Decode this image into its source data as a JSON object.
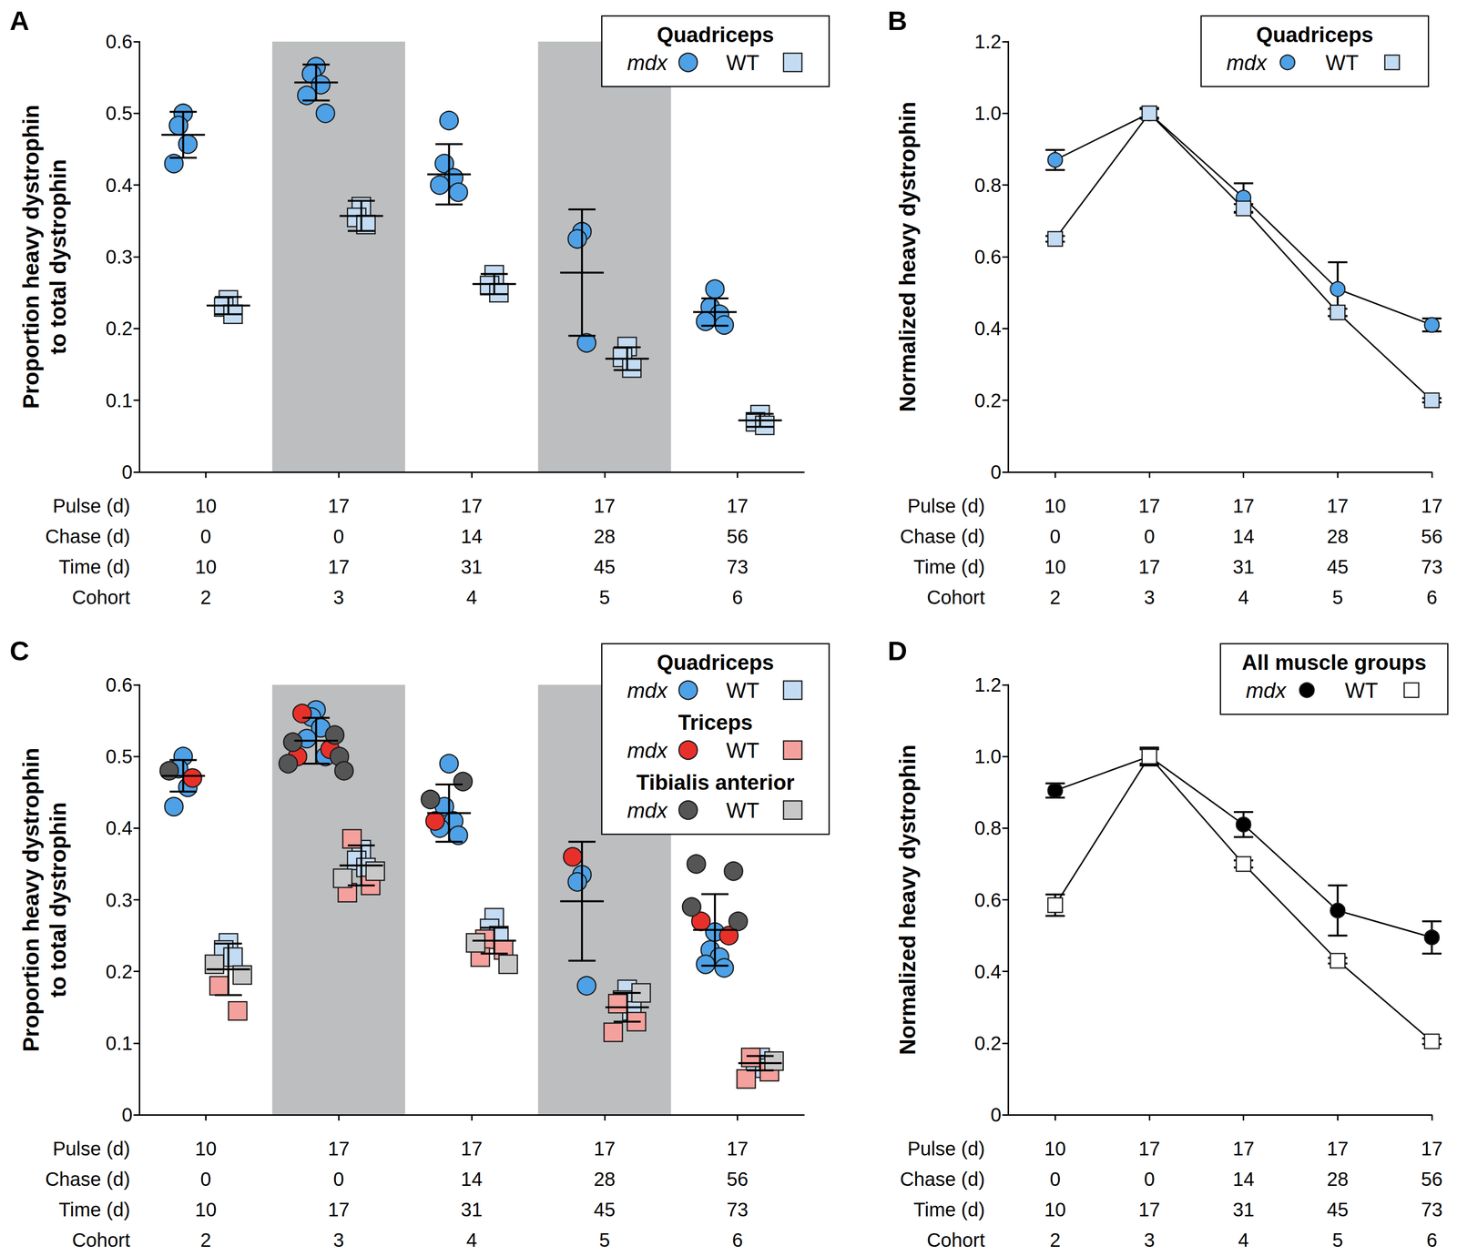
{
  "chart_data": [
    {
      "panel": "A",
      "type": "scatter",
      "ylabel": "Proportion heavy dystrophin\nto total dystrophin",
      "ylim": [
        0,
        0.6
      ],
      "yticks": [
        0,
        0.1,
        0.2,
        0.3,
        0.4,
        0.5,
        0.6
      ],
      "legend": "upper right",
      "category_rows": [
        {
          "label": "Pulse (d)",
          "values": [
            10,
            17,
            17,
            17,
            17
          ]
        },
        {
          "label": "Chase (d)",
          "values": [
            0,
            0,
            14,
            28,
            56
          ]
        },
        {
          "label": "Time (d)",
          "values": [
            10,
            17,
            31,
            45,
            73
          ]
        },
        {
          "label": "Cohort",
          "values": [
            2,
            3,
            4,
            5,
            6
          ]
        }
      ],
      "series": [
        {
          "name": "mdx",
          "group": "Quadriceps",
          "color": "#4ea1e6",
          "marker": "circle",
          "values": [
            [
              0.5,
              0.483,
              0.457,
              0.43
            ],
            [
              0.565,
              0.555,
              0.54,
              0.525,
              0.5
            ],
            [
              0.49,
              0.43,
              0.41,
              0.4,
              0.39
            ],
            [
              0.335,
              0.325,
              0.18
            ],
            [
              0.255,
              0.23,
              0.22,
              0.21,
              0.205
            ]
          ]
        },
        {
          "name": "WT",
          "group": "Quadriceps",
          "color": "#c4dcf3",
          "marker": "square",
          "values": [
            [
              0.24,
              0.23,
              0.22
            ],
            [
              0.37,
              0.355,
              0.345
            ],
            [
              0.275,
              0.26,
              0.25
            ],
            [
              0.175,
              0.16,
              0.145
            ],
            [
              0.08,
              0.07,
              0.065
            ]
          ]
        }
      ],
      "summary": [
        {
          "name": "mdx",
          "mean": [
            0.47,
            0.543,
            0.415,
            0.278,
            0.223
          ],
          "sd": [
            0.032,
            0.025,
            0.042,
            0.088,
            0.019
          ]
        },
        {
          "name": "WT",
          "mean": [
            0.232,
            0.357,
            0.262,
            0.158,
            0.072
          ],
          "sd": [
            0.012,
            0.021,
            0.014,
            0.016,
            0.009
          ]
        }
      ]
    },
    {
      "panel": "B",
      "type": "line",
      "ylabel": "Normalized heavy dystrophin",
      "ylim": [
        0,
        1.2
      ],
      "yticks": [
        0,
        0.2,
        0.4,
        0.6,
        0.8,
        {
          "value": 1,
          "label": "1.0"
        },
        1.2
      ],
      "legend": "upper right",
      "category_rows": [
        {
          "label": "Pulse (d)",
          "values": [
            10,
            17,
            17,
            17,
            17
          ]
        },
        {
          "label": "Chase (d)",
          "values": [
            0,
            0,
            14,
            28,
            56
          ]
        },
        {
          "label": "Time (d)",
          "values": [
            10,
            17,
            31,
            45,
            73
          ]
        },
        {
          "label": "Cohort",
          "values": [
            2,
            3,
            4,
            5,
            6
          ]
        }
      ],
      "series": [
        {
          "name": "mdx",
          "group": "Quadriceps",
          "color": "#4ea1e6",
          "marker": "circle",
          "values": [
            0.87,
            1.0,
            0.765,
            0.51,
            0.41
          ],
          "sd": [
            0.028,
            0.015,
            0.04,
            0.075,
            0.018
          ]
        },
        {
          "name": "WT",
          "group": "Quadriceps",
          "color": "#c4dcf3",
          "marker": "square",
          "values": [
            0.65,
            1.0,
            0.735,
            0.445,
            0.2
          ],
          "sd": [
            0.008,
            0.012,
            0.012,
            0.01,
            0.006
          ]
        }
      ]
    },
    {
      "panel": "C",
      "type": "scatter",
      "ylabel": "Proportion heavy dystrophin\nto total dystrophin",
      "ylim": [
        0,
        0.6
      ],
      "yticks": [
        0,
        0.1,
        0.2,
        0.3,
        0.4,
        0.5,
        0.6
      ],
      "legend": "upper right",
      "category_rows": [
        {
          "label": "Pulse (d)",
          "values": [
            10,
            17,
            17,
            17,
            17
          ]
        },
        {
          "label": "Chase (d)",
          "values": [
            0,
            0,
            14,
            28,
            56
          ]
        },
        {
          "label": "Time (d)",
          "values": [
            10,
            17,
            31,
            45,
            73
          ]
        },
        {
          "label": "Cohort",
          "values": [
            2,
            3,
            4,
            5,
            6
          ]
        }
      ],
      "series": [
        {
          "name": "mdx",
          "group": "Quadriceps",
          "color": "#4ea1e6",
          "marker": "circle",
          "values": [
            [
              0.5,
              0.483,
              0.457,
              0.43
            ],
            [
              0.565,
              0.555,
              0.54,
              0.525,
              0.5
            ],
            [
              0.49,
              0.43,
              0.41,
              0.4,
              0.39
            ],
            [
              0.335,
              0.325,
              0.18
            ],
            [
              0.255,
              0.23,
              0.22,
              0.21,
              0.205
            ]
          ]
        },
        {
          "name": "WT",
          "group": "Quadriceps",
          "color": "#c4dcf3",
          "marker": "square",
          "values": [
            [
              0.24,
              0.23,
              0.22
            ],
            [
              0.37,
              0.355,
              0.345
            ],
            [
              0.275,
              0.26,
              0.25
            ],
            [
              0.175,
              0.16,
              0.145
            ],
            [
              0.08,
              0.07,
              0.065
            ]
          ]
        },
        {
          "name": "mdx",
          "group": "Triceps",
          "color": "#e8302a",
          "marker": "circle",
          "values": [
            [
              0.47
            ],
            [
              0.56,
              0.51,
              0.5
            ],
            [
              0.41
            ],
            [
              0.36
            ],
            [
              0.27,
              0.25
            ]
          ]
        },
        {
          "name": "WT",
          "group": "Triceps",
          "color": "#f4a19d",
          "marker": "square",
          "values": [
            [
              0.18,
              0.145
            ],
            [
              0.385,
              0.32,
              0.31
            ],
            [
              0.245,
              0.23,
              0.22
            ],
            [
              0.155,
              0.13,
              0.115
            ],
            [
              0.08,
              0.06,
              0.05
            ]
          ]
        },
        {
          "name": "mdx",
          "group": "Tibialis anterior",
          "color": "#555555",
          "marker": "circle",
          "values": [
            [
              0.48
            ],
            [
              0.53,
              0.52,
              0.5,
              0.49,
              0.48
            ],
            [
              0.465,
              0.44
            ],
            [],
            [
              0.35,
              0.34,
              0.29,
              0.27
            ]
          ]
        },
        {
          "name": "WT",
          "group": "Tibialis anterior",
          "color": "#c8c8c8",
          "marker": "square",
          "values": [
            [
              0.21,
              0.195
            ],
            [
              0.34,
              0.33
            ],
            [
              0.21,
              0.24
            ],
            [
              0.17
            ],
            [
              0.075
            ]
          ]
        }
      ],
      "summary": [
        {
          "name": "mdx",
          "mean": [
            0.473,
            0.522,
            0.421,
            0.298,
            0.258
          ],
          "sd": [
            0.022,
            0.032,
            0.04,
            0.083,
            0.05
          ]
        },
        {
          "name": "WT",
          "mean": [
            0.203,
            0.348,
            0.243,
            0.15,
            0.072
          ],
          "sd": [
            0.036,
            0.028,
            0.018,
            0.02,
            0.01
          ]
        }
      ]
    },
    {
      "panel": "D",
      "type": "line",
      "ylabel": "Normalized heavy dystrophin",
      "ylim": [
        0,
        1.2
      ],
      "yticks": [
        0,
        0.2,
        0.4,
        0.6,
        0.8,
        {
          "value": 1,
          "label": "1.0"
        },
        1.2
      ],
      "legend": "upper right",
      "category_rows": [
        {
          "label": "Pulse (d)",
          "values": [
            10,
            17,
            17,
            17,
            17
          ]
        },
        {
          "label": "Chase (d)",
          "values": [
            0,
            0,
            14,
            28,
            56
          ]
        },
        {
          "label": "Time (d)",
          "values": [
            10,
            17,
            31,
            45,
            73
          ]
        },
        {
          "label": "Cohort",
          "values": [
            2,
            3,
            4,
            5,
            6
          ]
        }
      ],
      "series": [
        {
          "name": "mdx",
          "group": "All muscle groups",
          "color": "#000000",
          "marker": "circle",
          "values": [
            0.905,
            1.0,
            0.81,
            0.57,
            0.495
          ],
          "sd": [
            0.02,
            0.02,
            0.035,
            0.07,
            0.045
          ]
        },
        {
          "name": "WT",
          "group": "All muscle groups",
          "color": "#ffffff",
          "marker": "square",
          "values": [
            0.585,
            1.0,
            0.7,
            0.43,
            0.205
          ],
          "sd": [
            0.03,
            0.025,
            0.01,
            0.008,
            0.008
          ]
        }
      ]
    }
  ]
}
